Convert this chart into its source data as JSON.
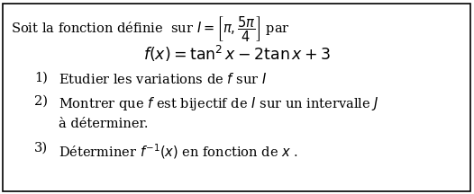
{
  "background_color": "#ffffff",
  "border_color": "#000000",
  "border_linewidth": 1.2,
  "line1": "Soit la fonction définie  sur $I = \\left[\\pi, \\dfrac{5\\pi}{4}\\right]$ par",
  "line2": "$f(x) = \\tan^2 x - 2\\tan x + 3$",
  "item1_num": "1)",
  "item1_text": "Etudier les variations de $f$ sur $I$",
  "item2_num": "2)",
  "item2_text": "Montrer que $f$ est bijectif de $I$ sur un intervalle $J$",
  "item2b_text": "à déterminer.",
  "item3_num": "3)",
  "item3_text": "Déterminer $f^{-1}(x)$ en fonction de $x$ .",
  "fontsize_main": 10.5,
  "fontsize_formula": 12.5,
  "text_color": "#000000",
  "fig_width": 5.26,
  "fig_height": 2.16,
  "dpi": 100
}
